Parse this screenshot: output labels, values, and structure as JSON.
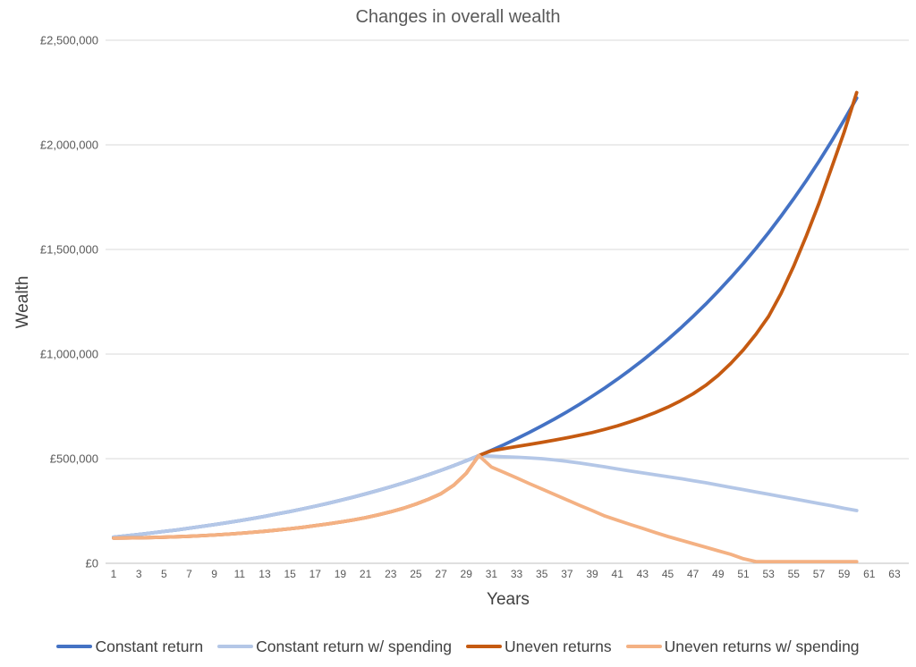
{
  "title": "Changes in overall wealth",
  "x_axis_title": "Years",
  "y_axis_title": "Wealth",
  "colors": {
    "gridline": "#D9D9D9",
    "axis_line": "#BFBFBF",
    "title_text": "#595959",
    "tick_text": "#595959",
    "axis_title_text": "#404040",
    "legend_text": "#404040"
  },
  "chart_data": {
    "type": "line",
    "title": "Changes in overall wealth",
    "xlabel": "Years",
    "ylabel": "Wealth",
    "xlim": [
      1,
      63
    ],
    "ylim": [
      0,
      2500000
    ],
    "grid": "horizontal-only",
    "legend_position": "bottom",
    "x_tick_labels": [
      1,
      3,
      5,
      7,
      9,
      11,
      13,
      15,
      17,
      19,
      21,
      23,
      25,
      27,
      29,
      31,
      33,
      35,
      37,
      39,
      41,
      43,
      45,
      47,
      49,
      51,
      53,
      55,
      57,
      59,
      61,
      63
    ],
    "y_tick_values": [
      0,
      500000,
      1000000,
      1500000,
      2000000,
      2500000
    ],
    "y_tick_labels": [
      "£0",
      "£500,000",
      "£1,000,000",
      "£1,500,000",
      "£2,000,000",
      "£2,500,000"
    ],
    "x": [
      1,
      2,
      3,
      4,
      5,
      6,
      7,
      8,
      9,
      10,
      11,
      12,
      13,
      14,
      15,
      16,
      17,
      18,
      19,
      20,
      21,
      22,
      23,
      24,
      25,
      26,
      27,
      28,
      29,
      30,
      31,
      32,
      33,
      34,
      35,
      36,
      37,
      38,
      39,
      40,
      41,
      42,
      43,
      44,
      45,
      46,
      47,
      48,
      49,
      50,
      51,
      52,
      53,
      54,
      55,
      56,
      57,
      58,
      59,
      60
    ],
    "series": [
      {
        "name": "Constant return",
        "color": "#4472C4",
        "values": [
          125000,
          131250,
          137813,
          144703,
          151938,
          159535,
          167512,
          175888,
          184682,
          193916,
          203612,
          213793,
          224482,
          235706,
          247492,
          259866,
          272859,
          286502,
          300827,
          315869,
          331662,
          348245,
          365658,
          383940,
          403137,
          423294,
          444459,
          466682,
          490016,
          514517,
          540243,
          567255,
          595618,
          625399,
          656669,
          689502,
          723977,
          760176,
          798185,
          838094,
          879999,
          923999,
          970199,
          1018709,
          1069644,
          1123126,
          1179283,
          1238247,
          1300159,
          1365167,
          1433425,
          1505097,
          1580352,
          1659369,
          1742338,
          1829455,
          1920927,
          2016974,
          2117822,
          2223713
        ]
      },
      {
        "name": "Constant return w/ spending",
        "color": "#B4C7E7",
        "values": [
          125000,
          131250,
          137813,
          144703,
          151938,
          159535,
          167512,
          175888,
          184682,
          193916,
          203612,
          213793,
          224482,
          235706,
          247492,
          259866,
          272859,
          286502,
          300827,
          315869,
          331662,
          348245,
          365658,
          383940,
          403137,
          423294,
          444459,
          466682,
          490016,
          514517,
          512000,
          509000,
          507000,
          504000,
          500000,
          494000,
          487000,
          479000,
          470000,
          461000,
          451000,
          441000,
          432000,
          423000,
          414000,
          405000,
          395000,
          385000,
          374000,
          363000,
          352000,
          341000,
          330000,
          319000,
          308000,
          297000,
          286000,
          275000,
          263000,
          252000
        ]
      },
      {
        "name": "Uneven returns",
        "color": "#C55A11",
        "values": [
          120000,
          121000,
          122000,
          123000,
          125000,
          127000,
          129000,
          132000,
          135000,
          139000,
          143000,
          148000,
          153000,
          159000,
          165000,
          172000,
          180000,
          188000,
          197000,
          207000,
          218000,
          231000,
          246000,
          263000,
          283000,
          306000,
          333000,
          373000,
          430000,
          515000,
          538000,
          548000,
          558000,
          568000,
          578000,
          589000,
          600000,
          612000,
          625000,
          640000,
          657000,
          676000,
          697000,
          720000,
          746000,
          776000,
          810000,
          850000,
          898000,
          955000,
          1020000,
          1095000,
          1180000,
          1290000,
          1420000,
          1565000,
          1720000,
          1890000,
          2060000,
          2250000
        ]
      },
      {
        "name": "Uneven returns w/ spending",
        "color": "#F4B183",
        "values": [
          120000,
          121000,
          122000,
          123000,
          125000,
          127000,
          129000,
          132000,
          135000,
          139000,
          143000,
          148000,
          153000,
          159000,
          165000,
          172000,
          180000,
          188000,
          197000,
          207000,
          218000,
          231000,
          246000,
          263000,
          283000,
          306000,
          333000,
          373000,
          430000,
          515000,
          460000,
          434000,
          408000,
          381000,
          355000,
          329000,
          303000,
          277000,
          252000,
          226000,
          206000,
          186000,
          167000,
          147000,
          128000,
          111000,
          94000,
          77000,
          60000,
          43000,
          22000,
          8000,
          8000,
          8000,
          8000,
          8000,
          8000,
          8000,
          8000,
          8000
        ]
      }
    ]
  }
}
